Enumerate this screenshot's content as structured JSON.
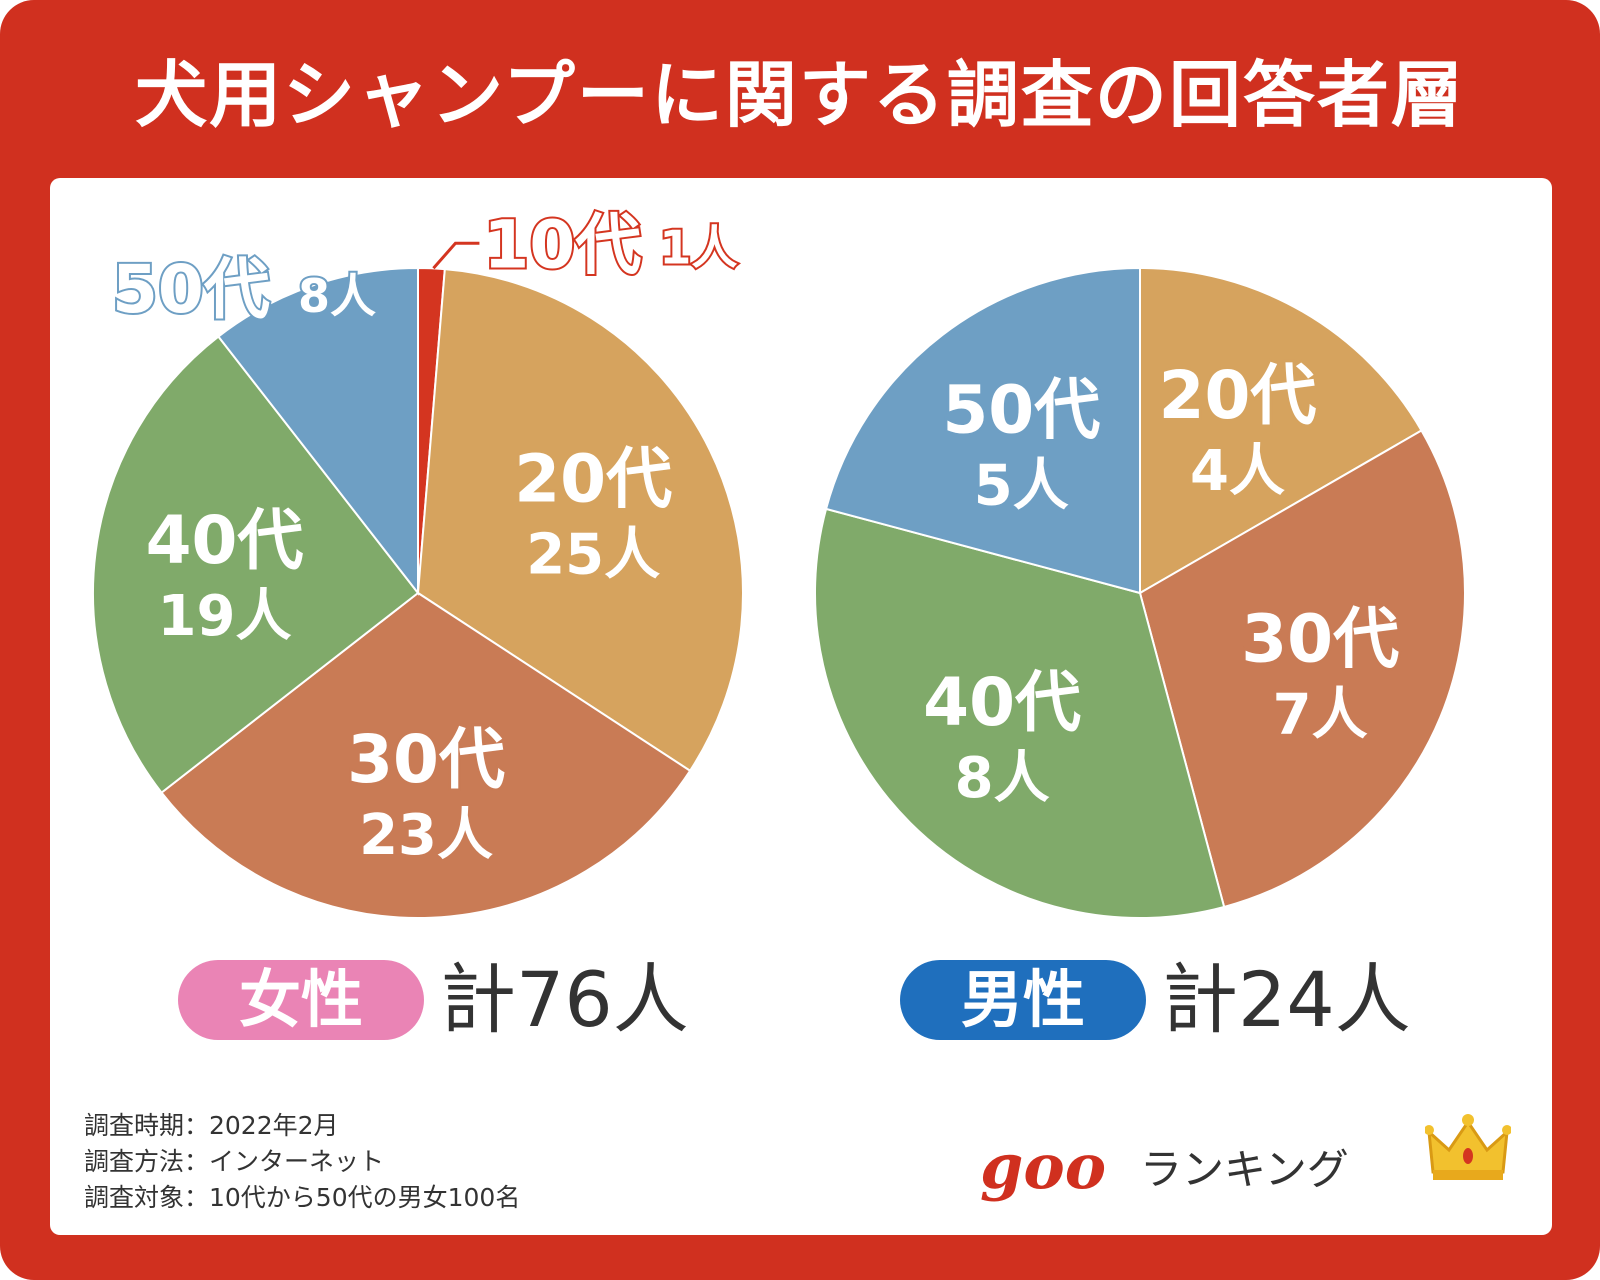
{
  "title": "犬用シャンプーに関する調査の回答者層",
  "colors": {
    "frame": "#d0301f",
    "10s": "#d43520",
    "20s": "#d6a35e",
    "30s": "#c97b55",
    "40s": "#80aa6a",
    "50s": "#6e9fc4",
    "female_pill": "#ea84b5",
    "male_pill": "#1f6fbd"
  },
  "chart_data": [
    {
      "type": "pie",
      "title": "女性",
      "total_label": "計76人",
      "slices": [
        {
          "label": "10代",
          "count": 1,
          "value_label": "1人",
          "color": "#d43520"
        },
        {
          "label": "20代",
          "count": 25,
          "value_label": "25人",
          "color": "#d6a35e"
        },
        {
          "label": "30代",
          "count": 23,
          "value_label": "23人",
          "color": "#c97b55"
        },
        {
          "label": "40代",
          "count": 19,
          "value_label": "19人",
          "color": "#80aa6a"
        },
        {
          "label": "50代",
          "count": 8,
          "value_label": "8人",
          "color": "#6e9fc4"
        }
      ]
    },
    {
      "type": "pie",
      "title": "男性",
      "total_label": "計24人",
      "slices": [
        {
          "label": "20代",
          "count": 4,
          "value_label": "4人",
          "color": "#d6a35e"
        },
        {
          "label": "30代",
          "count": 7,
          "value_label": "7人",
          "color": "#c97b55"
        },
        {
          "label": "40代",
          "count": 8,
          "value_label": "8人",
          "color": "#80aa6a"
        },
        {
          "label": "50代",
          "count": 5,
          "value_label": "5人",
          "color": "#6e9fc4"
        }
      ]
    }
  ],
  "survey": {
    "period": "調査時期：2022年2月",
    "method": "調査方法：インターネット",
    "target": "調査対象：10代から50代の男女100名"
  },
  "logo": {
    "brand": "goo",
    "text": "ランキング",
    "icon": "crown-icon"
  }
}
